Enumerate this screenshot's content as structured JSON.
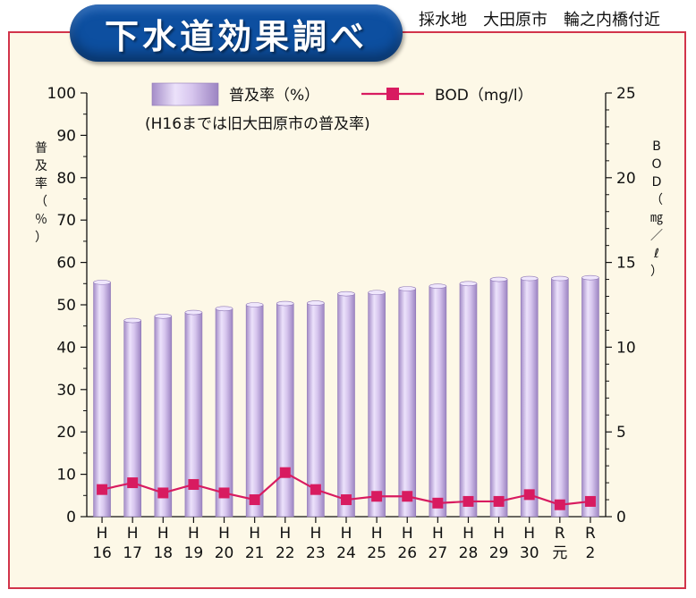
{
  "header": {
    "title": "下水道効果調べ",
    "location": "採水地　大田原市　輪之内橋付近"
  },
  "colors": {
    "frame_border": "#d2344a",
    "plot_background": "#fdf8e7",
    "title_pill": "#0d4fa0",
    "bar_fill": "#d9c8ef",
    "bod_line": "#d81b60"
  },
  "chart_data": {
    "type": "bar",
    "categories": [
      [
        "H",
        "16"
      ],
      [
        "H",
        "17"
      ],
      [
        "H",
        "18"
      ],
      [
        "H",
        "19"
      ],
      [
        "H",
        "20"
      ],
      [
        "H",
        "21"
      ],
      [
        "H",
        "22"
      ],
      [
        "H",
        "23"
      ],
      [
        "H",
        "24"
      ],
      [
        "H",
        "25"
      ],
      [
        "H",
        "26"
      ],
      [
        "H",
        "27"
      ],
      [
        "H",
        "28"
      ],
      [
        "H",
        "29"
      ],
      [
        "H",
        "30"
      ],
      [
        "R",
        "元"
      ],
      [
        "R",
        "2"
      ]
    ],
    "legend_position": "top",
    "legend_note": "(H16までは旧大田原市の普及率)",
    "y_left": {
      "label": "普及率（％）",
      "range": [
        0,
        100
      ],
      "ticks": [
        "0",
        "10",
        "20",
        "30",
        "40",
        "50",
        "60",
        "70",
        "80",
        "90",
        "100"
      ]
    },
    "y_right": {
      "label": "BOD（㎎／ℓ）",
      "range": [
        0,
        25
      ],
      "ticks": [
        "0",
        "5",
        "10",
        "15",
        "20",
        "25"
      ]
    },
    "series": [
      {
        "name": "普及率（%）",
        "type": "bar",
        "axis": "left",
        "values": [
          55.3,
          46.3,
          47.3,
          48.2,
          49.1,
          50.0,
          50.3,
          50.4,
          52.6,
          52.9,
          53.8,
          54.4,
          55.0,
          56.0,
          56.2,
          56.2,
          56.4
        ]
      },
      {
        "name": "BOD（mg/l）",
        "type": "line",
        "axis": "right",
        "values": [
          1.6,
          2.0,
          1.4,
          1.9,
          1.4,
          1.0,
          2.6,
          1.6,
          1.0,
          1.2,
          1.2,
          0.8,
          0.9,
          0.9,
          1.3,
          0.7,
          0.9
        ]
      }
    ]
  }
}
